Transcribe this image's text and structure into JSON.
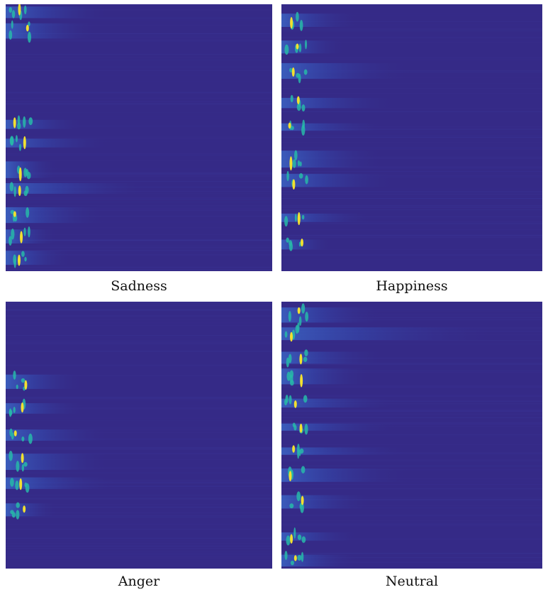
{
  "panels": [
    {
      "label": "Sadness"
    },
    {
      "label": "Happiness"
    },
    {
      "label": "Anger"
    },
    {
      "label": "Neutral"
    }
  ]
}
